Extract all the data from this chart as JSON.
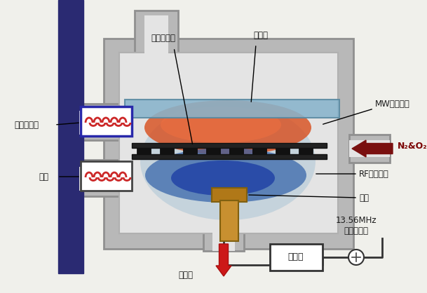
{
  "bg_color": "#f0f0eb",
  "labels": {
    "ion_trap": "离子捕获板",
    "glass_disk": "玻璃盘",
    "mw_plasma": "MW等离子体",
    "n2o2": "N₂&O₂",
    "rf_plasma": "RF等离子体",
    "electrode": "电极",
    "anode_head": "阳极键合头",
    "air": "空气",
    "exhaust": "排气管",
    "match_box": "匹配箱",
    "freq": "13.56MHz\n无线电频率"
  },
  "colors": {
    "dark_blue_bar": "#2a2a72",
    "chamber_wall": "#b8b8b8",
    "chamber_bg": "#e4e4e4",
    "top_plasma": "#d85020",
    "top_plasma2": "#f07040",
    "bot_plasma": "#3060a8",
    "bot_plasma2": "#1030a0",
    "halo_blue": "#78a8c8",
    "glass_blue": "#88b4cc",
    "grating": "#1a1a1a",
    "electrode_gold": "#b07818",
    "electrode_gold2": "#c89030",
    "arrow_darkred": "#7a1010",
    "arrow_red": "#cc1818",
    "text_dark": "#1a1a1a",
    "coil_red": "#cc2828",
    "coil_top_outline": "#2828aa",
    "coil_bot_outline": "#444444",
    "wire_color": "#333333"
  }
}
